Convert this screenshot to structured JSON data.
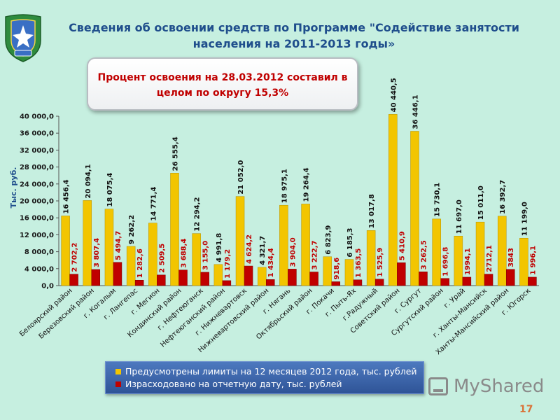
{
  "header": {
    "title_line1": "Сведения об освоении средств по Программе \"Содействие занятости",
    "title_line2": "населения на 2011-2013 годы»"
  },
  "callout": {
    "line1": "Процент освоения на 28.03.2012 составил в",
    "line2": "целом по округу  15,3%"
  },
  "emblem": {
    "icon": "coat-of-arms-icon"
  },
  "chart_data": {
    "type": "bar",
    "ylabel": "Тыс. руб.",
    "ylim": [
      0,
      40000
    ],
    "yticks": [
      "0,0",
      "4 000,0",
      "8 000,0",
      "12 000,0",
      "16 000,0",
      "20 000,0",
      "24 000,0",
      "28 000,0",
      "32 000,0",
      "36 000,0",
      "40 000,0"
    ],
    "categories": [
      "Белоярский район",
      "Березовский район",
      "г. Когалым",
      "г. Лангепас",
      "г. Мегион",
      "Кондинский район",
      "г. Нефтеюганск",
      "Нефтеюганский район",
      "г. Нижневартовск",
      "Нижневартовский район",
      "г. Нягань",
      "Октябрьский район",
      "г. Покачи",
      "г. Пыть-Ях",
      "г.Радужный",
      "Советский район",
      "г. Сургут",
      "Сургутский район",
      "г. Урай",
      "г. Ханты-Мансийск",
      "Ханты-Мансийский район",
      "г. Югорск"
    ],
    "series": [
      {
        "name": "Предусмотрены  лимиты на 12 месяцев  2012 года, тыс. рублей",
        "color": "#f2c500",
        "values": [
          16456.4,
          20094.1,
          18075.4,
          9262.2,
          14771.4,
          26555.4,
          12294.2,
          4991.8,
          21052.0,
          4321.7,
          18975.1,
          19264.4,
          6823.9,
          6185.3,
          13017.8,
          40440.5,
          36446.1,
          15730.1,
          11697.0,
          15011.0,
          16392.7,
          11199.0
        ],
        "labels": [
          "16 456,4",
          "20 094,1",
          "18 075,4",
          "9 262,2",
          "14 771,4",
          "26 555,4",
          "12 294,2",
          "4 991,8",
          "21 052,0",
          "4 321,7",
          "18 975,1",
          "19 264,4",
          "6 823,9",
          "6 185,3",
          "13 017,8",
          "40 440,5",
          "36 446,1",
          "15 730,1",
          "11 697,0",
          "15 011,0",
          "16 392,7",
          "11 199,0"
        ]
      },
      {
        "name": "Израсходовано на отчетную дату, тыс. рублей",
        "color": "#c00000",
        "values": [
          2702.2,
          3807.4,
          5494.7,
          1282.6,
          2509.5,
          3688.4,
          3155.0,
          1179.2,
          4624.2,
          1434.4,
          3904.0,
          3222.7,
          918.6,
          1363.5,
          1525.9,
          5410.9,
          3262.5,
          1696.8,
          1994.1,
          2712.1,
          3843,
          1996.1
        ],
        "labels": [
          "2 702,2",
          "3 807,4",
          "5 494,7",
          "1 282,6",
          "2 509,5",
          "3 688,4",
          "3 155,0",
          "1 179,2",
          "4 624,2",
          "1 434,4",
          "3 904,0",
          "3 222,7",
          "918,6",
          "1 363,5",
          "1 525,9",
          "5 410,9",
          "3 262,5",
          "1 696,8",
          "1994,1",
          "2712,1",
          "3843",
          "1 996,1"
        ]
      }
    ],
    "legend_position": "bottom",
    "grid": false
  },
  "watermark": {
    "text": "MyShared"
  },
  "footer": {
    "page_number": "17"
  }
}
